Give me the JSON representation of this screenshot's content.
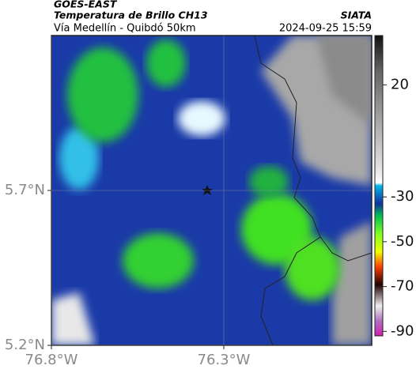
{
  "header": {
    "title": "GOES-EAST",
    "subtitle": "Temperatura de Brillo CH13",
    "source": "SIATA",
    "location": "Vía Medellín - Quibdó 50km",
    "timestamp": "2024-09-25 15:59"
  },
  "axes": {
    "ylim": [
      5.2,
      6.2
    ],
    "xlim": [
      -76.8,
      -75.871
    ],
    "yticks": [
      {
        "value": 5.7,
        "label": "5.7°N"
      },
      {
        "value": 5.2,
        "label": "5.2°N"
      }
    ],
    "xticks": [
      {
        "value": -76.8,
        "label": "76.8°W"
      },
      {
        "value": -76.3,
        "label": "76.3°W"
      }
    ]
  },
  "colorbar": {
    "lim": [
      -92,
      42
    ],
    "ticks": [
      20,
      -30,
      -50,
      -70,
      -90
    ]
  }
}
